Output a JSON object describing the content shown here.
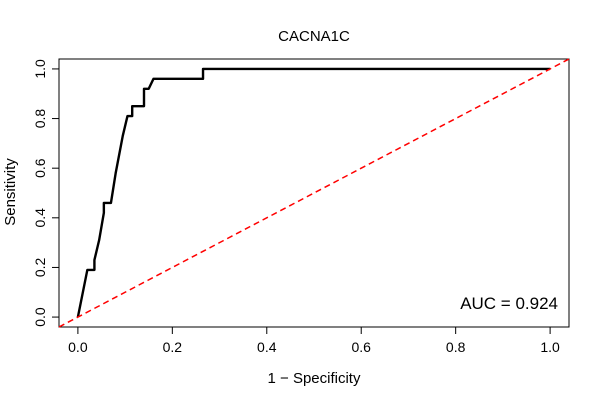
{
  "chart_data": {
    "type": "line",
    "title": "CACNA1C",
    "xlabel": "1 − Specificity",
    "ylabel": "Sensitivity",
    "xlim": [
      -0.04,
      1.04
    ],
    "ylim": [
      -0.04,
      1.04
    ],
    "xticks": [
      0.0,
      0.2,
      0.4,
      0.6,
      0.8,
      1.0
    ],
    "xtick_labels": [
      "0.0",
      "0.2",
      "0.4",
      "0.6",
      "0.8",
      "1.0"
    ],
    "yticks": [
      0.0,
      0.2,
      0.4,
      0.6,
      0.8,
      1.0
    ],
    "ytick_labels": [
      "0.0",
      "0.2",
      "0.4",
      "0.6",
      "0.8",
      "1.0"
    ],
    "grid": false,
    "annotation": "AUC = 0.924",
    "series": [
      {
        "color": "#000000",
        "style": "solid",
        "x": [
          0.0,
          0.02,
          0.02,
          0.035,
          0.035,
          0.045,
          0.055,
          0.055,
          0.07,
          0.08,
          0.095,
          0.105,
          0.105,
          0.115,
          0.115,
          0.14,
          0.14,
          0.15,
          0.15,
          0.16,
          0.16,
          0.265,
          0.265,
          1.0
        ],
        "y": [
          0.0,
          0.19,
          0.19,
          0.19,
          0.23,
          0.31,
          0.42,
          0.46,
          0.46,
          0.58,
          0.73,
          0.81,
          0.81,
          0.81,
          0.85,
          0.85,
          0.92,
          0.92,
          0.92,
          0.96,
          0.96,
          0.96,
          1.0,
          1.0
        ]
      },
      {
        "color": "#ff0000",
        "style": "dashed",
        "x": [
          -0.04,
          1.04
        ],
        "y": [
          -0.04,
          1.04
        ]
      }
    ]
  }
}
